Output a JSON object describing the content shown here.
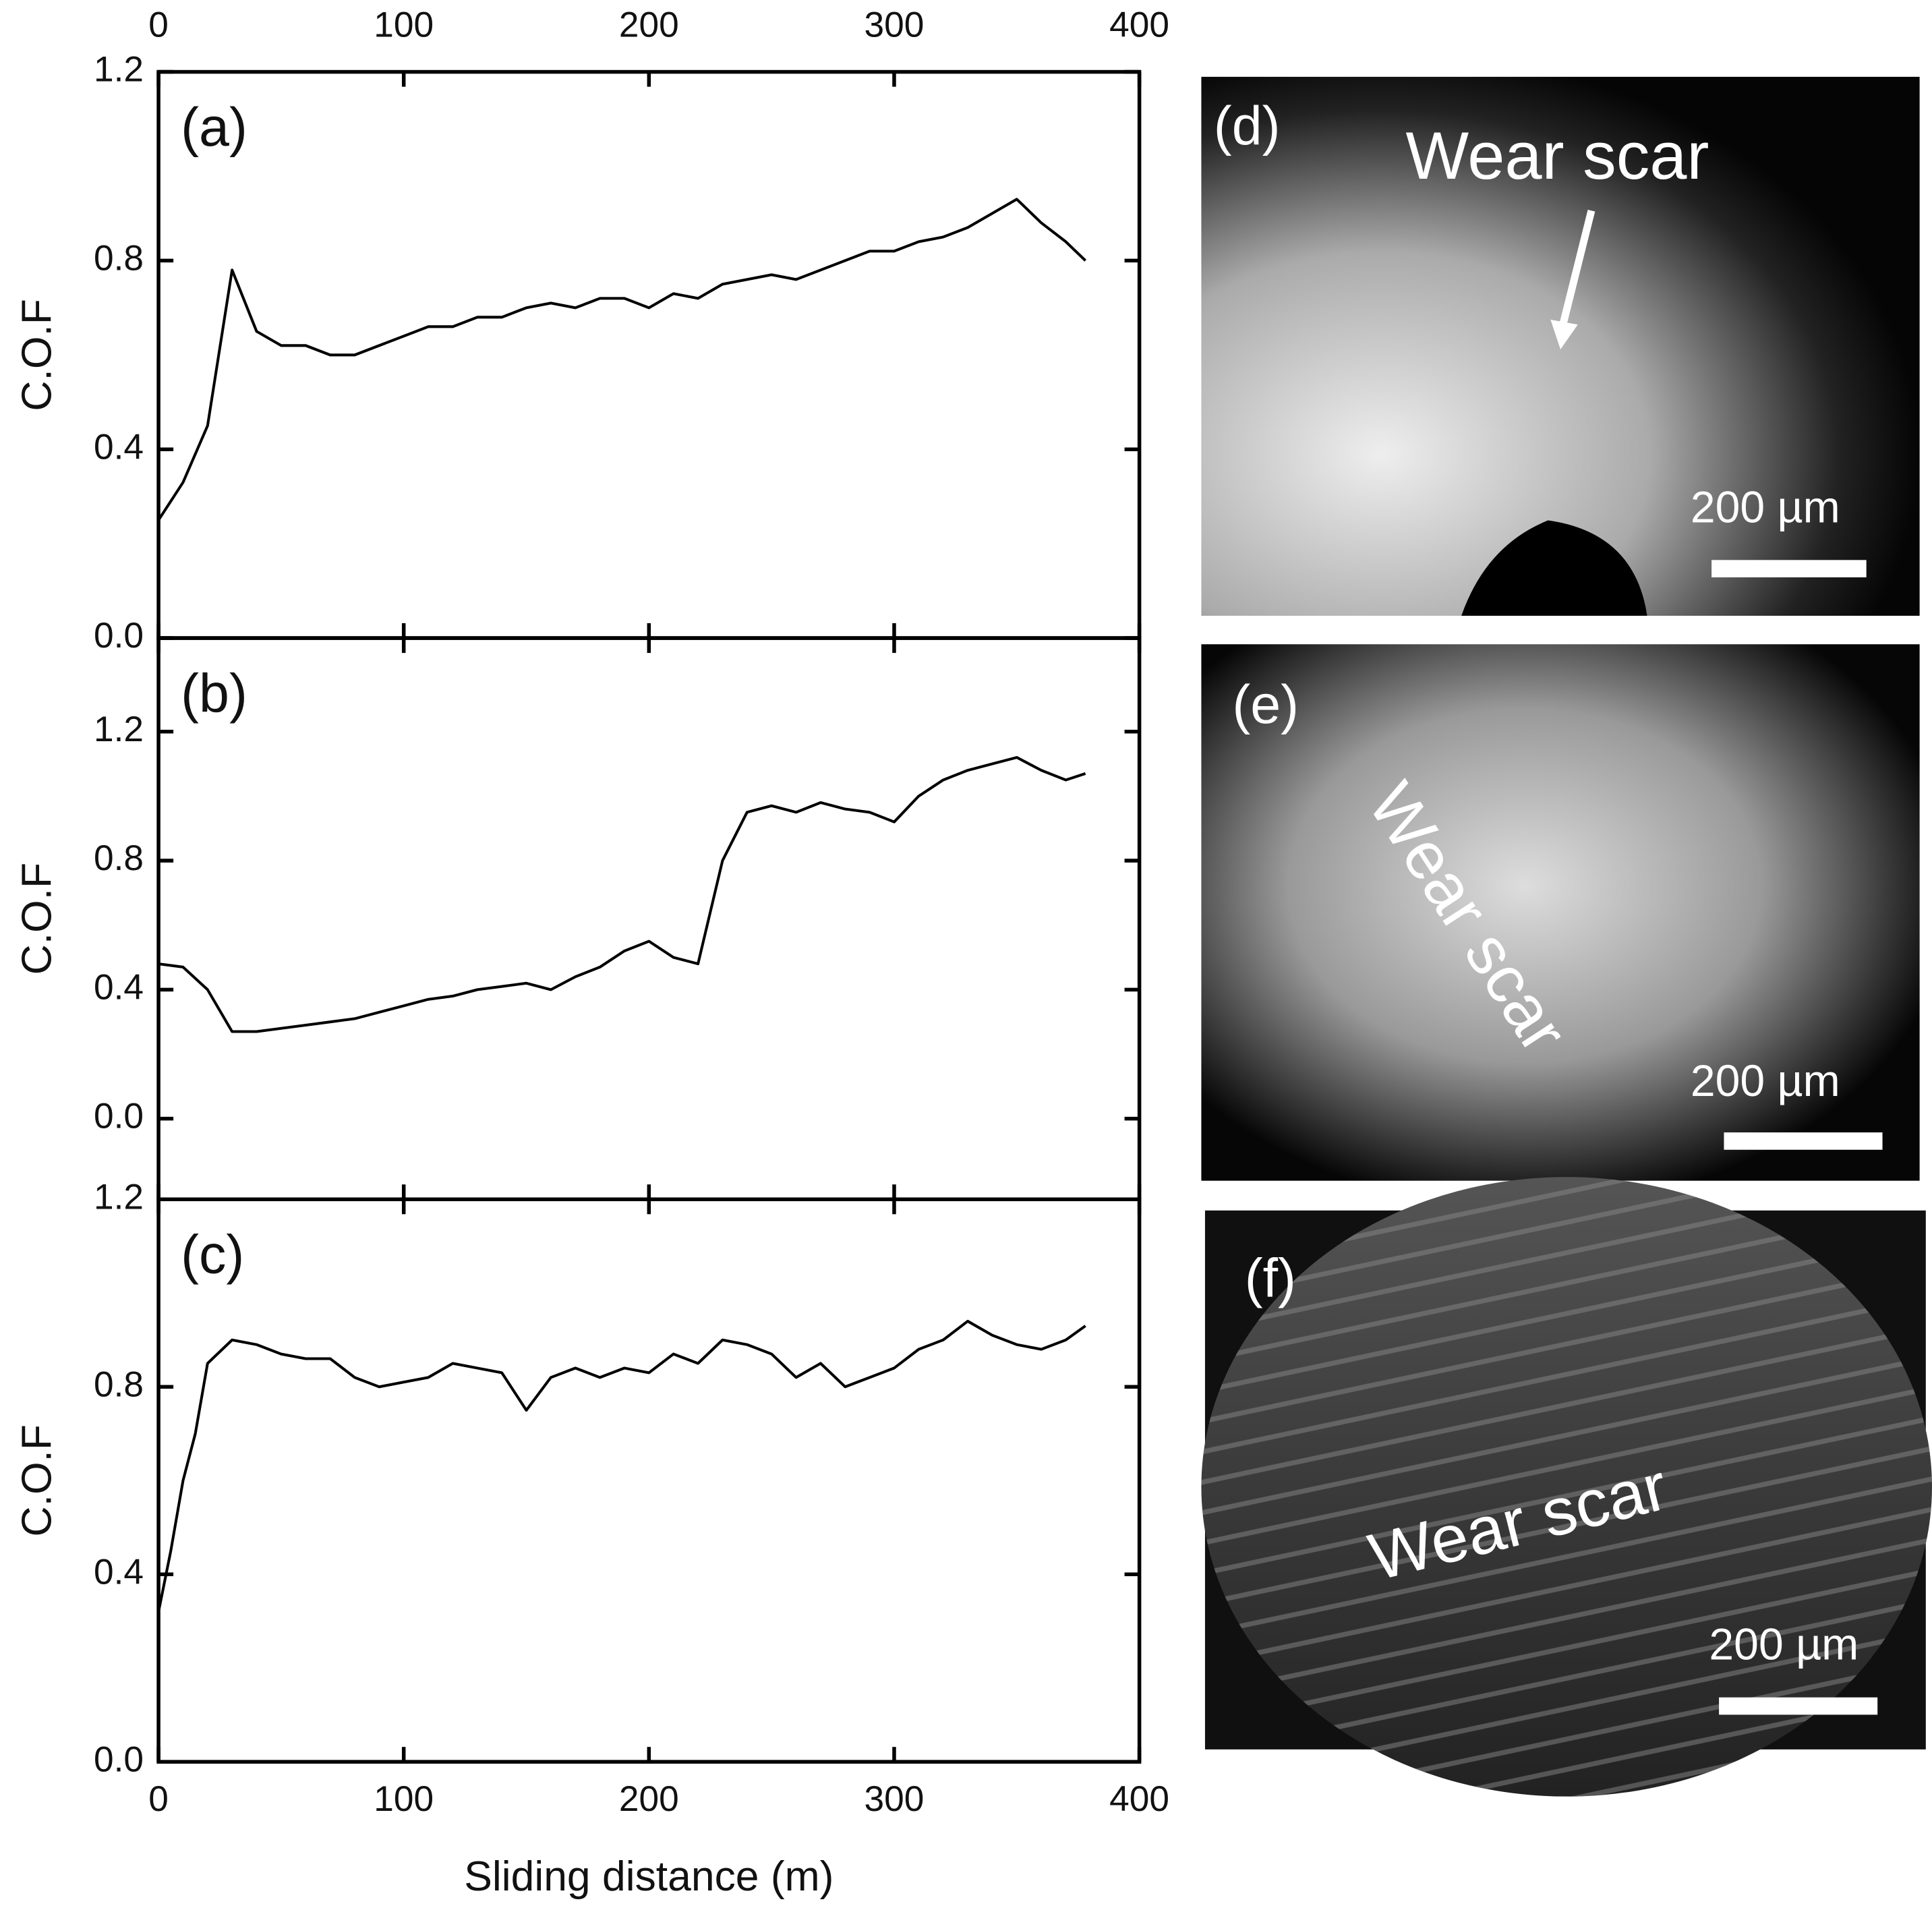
{
  "chart_data": [
    {
      "type": "line",
      "annotation": "(a)",
      "y_label": "C.O.F",
      "color": "#000000",
      "x": [
        0,
        10,
        20,
        30,
        40,
        50,
        60,
        70,
        80,
        90,
        100,
        110,
        120,
        130,
        140,
        150,
        160,
        170,
        180,
        190,
        200,
        210,
        220,
        230,
        240,
        250,
        260,
        270,
        280,
        290,
        300,
        310,
        320,
        330,
        340,
        350,
        360,
        370,
        378
      ],
      "values": [
        0.25,
        0.33,
        0.45,
        0.78,
        0.65,
        0.62,
        0.62,
        0.6,
        0.6,
        0.62,
        0.64,
        0.66,
        0.66,
        0.68,
        0.68,
        0.7,
        0.71,
        0.7,
        0.72,
        0.72,
        0.7,
        0.73,
        0.72,
        0.75,
        0.76,
        0.77,
        0.76,
        0.78,
        0.8,
        0.82,
        0.82,
        0.84,
        0.85,
        0.87,
        0.9,
        0.93,
        0.88,
        0.84,
        0.8
      ],
      "xlim": [
        0,
        400
      ],
      "xticks": [
        0,
        100,
        200,
        300,
        400
      ],
      "ylim": [
        0,
        1.2
      ],
      "yticks": [
        {
          "value": 0,
          "label": "0.0"
        },
        0.4,
        0.8,
        1.2
      ]
    },
    {
      "type": "line",
      "annotation": "(b)",
      "y_label": "C.O.F",
      "color": "#000000",
      "x": [
        0,
        10,
        20,
        30,
        40,
        50,
        60,
        70,
        80,
        90,
        100,
        110,
        120,
        130,
        140,
        150,
        160,
        170,
        180,
        190,
        200,
        210,
        220,
        230,
        240,
        250,
        260,
        270,
        280,
        290,
        300,
        310,
        320,
        330,
        340,
        350,
        360,
        370,
        378
      ],
      "values": [
        0.48,
        0.47,
        0.4,
        0.27,
        0.27,
        0.28,
        0.29,
        0.3,
        0.31,
        0.33,
        0.35,
        0.37,
        0.38,
        0.4,
        0.41,
        0.42,
        0.4,
        0.44,
        0.47,
        0.52,
        0.55,
        0.5,
        0.48,
        0.8,
        0.95,
        0.97,
        0.95,
        0.98,
        0.96,
        0.95,
        0.92,
        1.0,
        1.05,
        1.08,
        1.1,
        1.12,
        1.08,
        1.05,
        1.07
      ],
      "xlim": [
        0,
        400
      ],
      "xticks": [
        0,
        100,
        200,
        300,
        400
      ],
      "ylim": [
        -0.25,
        1.49
      ],
      "yticks": [
        {
          "value": 0,
          "label": "0.0"
        },
        0.4,
        0.8,
        1.2
      ]
    },
    {
      "type": "line",
      "annotation": "(c)",
      "y_label": "C.O.F",
      "x_label": "Sliding distance (m)",
      "color": "#000000",
      "x": [
        0,
        5,
        10,
        15,
        20,
        30,
        40,
        50,
        60,
        70,
        80,
        90,
        100,
        110,
        120,
        130,
        140,
        150,
        160,
        170,
        180,
        190,
        200,
        210,
        220,
        230,
        240,
        250,
        260,
        270,
        280,
        290,
        300,
        310,
        320,
        330,
        340,
        350,
        360,
        370,
        378
      ],
      "values": [
        0.32,
        0.45,
        0.6,
        0.7,
        0.85,
        0.9,
        0.89,
        0.87,
        0.86,
        0.86,
        0.82,
        0.8,
        0.81,
        0.82,
        0.85,
        0.84,
        0.83,
        0.75,
        0.82,
        0.84,
        0.82,
        0.84,
        0.83,
        0.87,
        0.85,
        0.9,
        0.89,
        0.87,
        0.82,
        0.85,
        0.8,
        0.82,
        0.84,
        0.88,
        0.9,
        0.94,
        0.91,
        0.89,
        0.88,
        0.9,
        0.93
      ],
      "xlim": [
        0,
        400
      ],
      "xticks": [
        0,
        100,
        200,
        300,
        400
      ],
      "ylim": [
        0,
        1.2
      ],
      "yticks": [
        {
          "value": 0,
          "label": "0.0"
        },
        0.4,
        0.8,
        1.2
      ]
    }
  ],
  "images": [
    {
      "label": "(d)",
      "annotation": "Wear scar",
      "scale_bar": "200 µm"
    },
    {
      "label": "(e)",
      "annotation": "Wear scar",
      "scale_bar": "200 µm"
    },
    {
      "label": "(f)",
      "annotation": "Wear scar",
      "scale_bar": "200 µm"
    }
  ]
}
